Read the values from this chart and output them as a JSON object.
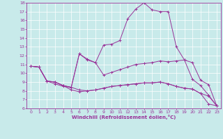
{
  "xlabel": "Windchill (Refroidissement éolien,°C)",
  "xlim": [
    -0.5,
    23.5
  ],
  "ylim": [
    6,
    18
  ],
  "xticks": [
    0,
    1,
    2,
    3,
    4,
    5,
    6,
    7,
    8,
    9,
    10,
    11,
    12,
    13,
    14,
    15,
    16,
    17,
    18,
    19,
    20,
    21,
    22,
    23
  ],
  "yticks": [
    6,
    7,
    8,
    9,
    10,
    11,
    12,
    13,
    14,
    15,
    16,
    17,
    18
  ],
  "bg_color": "#c8eaea",
  "line_color": "#993399",
  "grid_color": "#ffffff",
  "lines": [
    [
      10.8,
      10.7,
      9.1,
      9.0,
      8.6,
      8.4,
      12.2,
      11.5,
      11.2,
      13.2,
      13.3,
      13.7,
      16.2,
      17.3,
      18.0,
      17.2,
      17.0,
      17.0,
      13.0,
      11.5,
      9.3,
      8.6,
      7.5,
      6.3
    ],
    [
      10.8,
      10.7,
      9.1,
      9.0,
      8.6,
      8.4,
      12.2,
      11.6,
      11.2,
      9.8,
      10.1,
      10.4,
      10.7,
      11.0,
      11.1,
      11.2,
      11.4,
      11.3,
      11.4,
      11.5,
      11.2,
      9.2,
      8.7,
      6.3
    ],
    [
      10.8,
      10.7,
      9.1,
      9.0,
      8.6,
      8.1,
      7.9,
      8.0,
      8.1,
      8.3,
      8.5,
      8.6,
      8.7,
      8.8,
      8.9,
      8.9,
      9.0,
      8.8,
      8.5,
      8.3,
      8.2,
      7.7,
      7.4,
      6.3
    ],
    [
      10.8,
      10.7,
      9.1,
      8.8,
      8.5,
      8.4,
      8.1,
      8.0,
      8.1,
      8.3,
      8.5,
      8.6,
      8.7,
      8.8,
      8.9,
      8.9,
      9.0,
      8.8,
      8.5,
      8.3,
      8.2,
      7.7,
      6.5,
      6.3
    ]
  ]
}
